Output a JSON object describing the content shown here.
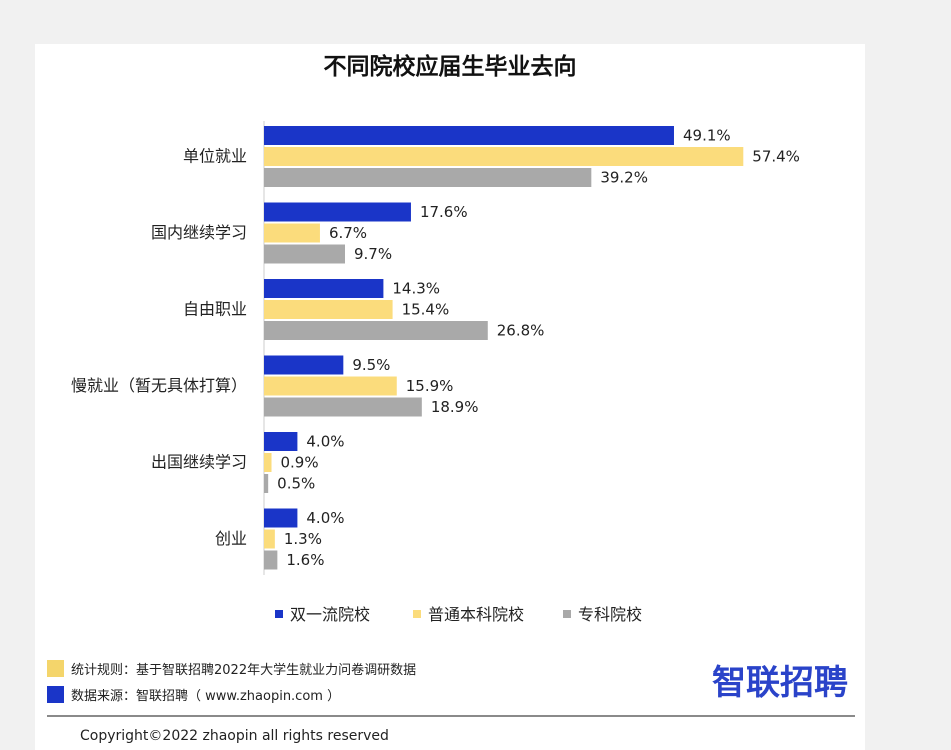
{
  "chart_data": {
    "type": "bar",
    "orientation": "horizontal",
    "title": "不同院校应届生毕业去向",
    "categories": [
      "单位就业",
      "国内继续学习",
      "自由职业",
      "慢就业（暂无具体打算）",
      "出国继续学习",
      "创业"
    ],
    "series": [
      {
        "name": "双一流院校",
        "color": "#1a35c8",
        "values": [
          49.1,
          17.6,
          14.3,
          9.5,
          4.0,
          4.0
        ]
      },
      {
        "name": "普通本科院校",
        "color": "#fbdc7c",
        "values": [
          57.4,
          6.7,
          15.4,
          15.9,
          0.9,
          1.3
        ]
      },
      {
        "name": "专科院校",
        "color": "#a9a9a9",
        "values": [
          39.2,
          9.7,
          26.8,
          18.9,
          0.5,
          1.6
        ]
      }
    ],
    "value_suffix": "%",
    "xlim": [
      0,
      60
    ],
    "grid": false,
    "legend_position": "bottom"
  },
  "notes": [
    {
      "text": "统计规则：基于智联招聘2022年大学生就业力问卷调研数据",
      "color": "#f4d56b"
    },
    {
      "text": "数据来源：智联招聘（ www.zhaopin.com ）",
      "color": "#1a35c8"
    }
  ],
  "brand": {
    "logo_text": "智联招聘"
  },
  "footer": {
    "copyright": "Copyright©2022 zhaopin all rights reserved"
  }
}
